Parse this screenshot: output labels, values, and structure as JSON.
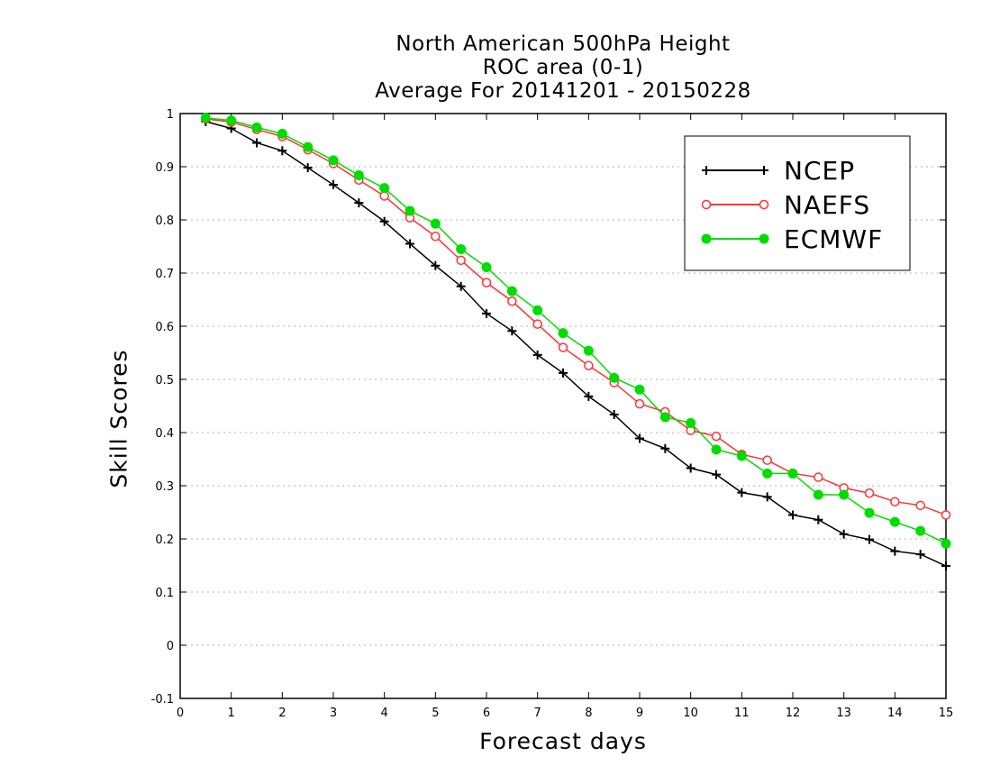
{
  "chart_data": {
    "type": "line",
    "title_lines": [
      "North American 500hPa Height",
      "ROC area (0-1)",
      "Average For 20141201 - 20150228"
    ],
    "xlabel": "Forecast days",
    "ylabel": "Skill Scores",
    "xlim": [
      0,
      15
    ],
    "ylim": [
      -0.1,
      1
    ],
    "xticks": [
      0,
      1,
      2,
      3,
      4,
      5,
      6,
      7,
      8,
      9,
      10,
      11,
      12,
      13,
      14,
      15
    ],
    "yticks": [
      -0.1,
      0,
      0.1,
      0.2,
      0.3,
      0.4,
      0.5,
      0.6,
      0.7,
      0.8,
      0.9,
      1
    ],
    "ytick_labels": [
      "-0.1",
      "0",
      "0.1",
      "0.2",
      "0.3",
      "0.4",
      "0.5",
      "0.6",
      "0.7",
      "0.8",
      "0.9",
      "1"
    ],
    "grid": "horizontal dotted",
    "legend_position": "top-right",
    "x": [
      0.5,
      1,
      1.5,
      2,
      2.5,
      3,
      3.5,
      4,
      4.5,
      5,
      5.5,
      6,
      6.5,
      7,
      7.5,
      8,
      8.5,
      9,
      9.5,
      10,
      10.5,
      11,
      11.5,
      12,
      12.5,
      13,
      13.5,
      14,
      14.5,
      15
    ],
    "series": [
      {
        "name": "NCEP",
        "color": "#000000",
        "marker": "plus",
        "values": [
          0.985,
          0.972,
          0.945,
          0.93,
          0.898,
          0.866,
          0.832,
          0.797,
          0.755,
          0.714,
          0.675,
          0.624,
          0.591,
          0.546,
          0.512,
          0.468,
          0.434,
          0.389,
          0.37,
          0.333,
          0.321,
          0.287,
          0.279,
          0.245,
          0.236,
          0.209,
          0.199,
          0.177,
          0.171,
          0.149
        ]
      },
      {
        "name": "NAEFS",
        "color": "#ff3333",
        "marker": "open-circle",
        "values": [
          0.99,
          0.984,
          0.97,
          0.957,
          0.932,
          0.906,
          0.875,
          0.845,
          0.804,
          0.769,
          0.724,
          0.682,
          0.647,
          0.604,
          0.56,
          0.526,
          0.494,
          0.454,
          0.439,
          0.404,
          0.393,
          0.359,
          0.348,
          0.323,
          0.316,
          0.296,
          0.286,
          0.27,
          0.263,
          0.245
        ]
      },
      {
        "name": "ECMWF",
        "color": "#00dd00",
        "marker": "filled-circle",
        "values": [
          0.992,
          0.987,
          0.974,
          0.962,
          0.937,
          0.912,
          0.884,
          0.86,
          0.817,
          0.793,
          0.745,
          0.711,
          0.666,
          0.63,
          0.587,
          0.554,
          0.503,
          0.481,
          0.429,
          0.418,
          0.368,
          0.356,
          0.323,
          0.323,
          0.283,
          0.283,
          0.249,
          0.232,
          0.215,
          0.191
        ]
      }
    ]
  }
}
